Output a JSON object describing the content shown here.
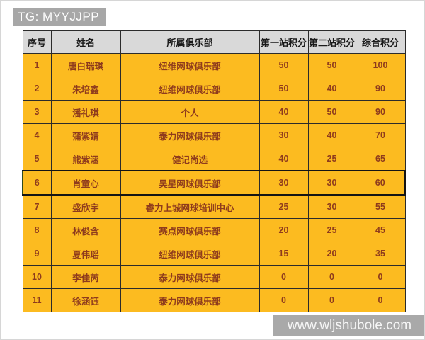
{
  "watermarks": {
    "top": "TG: MYYJJPP",
    "bottom": "www.wljshubole.com"
  },
  "colors": {
    "row_background": "#fcbb20",
    "header_background": "#d9d9d9",
    "cell_text": "#8e3b1d",
    "grid_line": "#2b2b2b",
    "watermark_background": "#a8a8a8",
    "watermark_text": "#ffffff"
  },
  "chart_data": {
    "type": "table",
    "columns": [
      "序号",
      "姓名",
      "所属俱乐部",
      "第一站积分",
      "第二站积分",
      "综合积分"
    ],
    "highlighted_row": 6,
    "rows": [
      {
        "no": "1",
        "name": "唐白瑞琪",
        "club": "纽维网球俱乐部",
        "s1": "50",
        "s2": "50",
        "total": "100"
      },
      {
        "no": "2",
        "name": "朱培鑫",
        "club": "纽维网球俱乐部",
        "s1": "50",
        "s2": "40",
        "total": "90"
      },
      {
        "no": "3",
        "name": "潘礼琪",
        "club": "个人",
        "s1": "40",
        "s2": "50",
        "total": "90"
      },
      {
        "no": "4",
        "name": "蒲紫婧",
        "club": "泰力网球俱乐部",
        "s1": "30",
        "s2": "40",
        "total": "70"
      },
      {
        "no": "5",
        "name": "熊紫涵",
        "club": "健记尚选",
        "s1": "40",
        "s2": "25",
        "total": "65"
      },
      {
        "no": "6",
        "name": "肖童心",
        "club": "吴星网球俱乐部",
        "s1": "30",
        "s2": "30",
        "total": "60"
      },
      {
        "no": "7",
        "name": "盛欣宇",
        "club": "睿力上城网球培训中心",
        "s1": "25",
        "s2": "30",
        "total": "55"
      },
      {
        "no": "8",
        "name": "林俊含",
        "club": "赛点网球俱乐部",
        "s1": "20",
        "s2": "25",
        "total": "45"
      },
      {
        "no": "9",
        "name": "夏伟瑶",
        "club": "纽维网球俱乐部",
        "s1": "15",
        "s2": "20",
        "total": "35"
      },
      {
        "no": "10",
        "name": "李佳芮",
        "club": "泰力网球俱乐部",
        "s1": "0",
        "s2": "0",
        "total": "0"
      },
      {
        "no": "11",
        "name": "徐涵钰",
        "club": "泰力网球俱乐部",
        "s1": "0",
        "s2": "0",
        "total": "0"
      }
    ]
  }
}
